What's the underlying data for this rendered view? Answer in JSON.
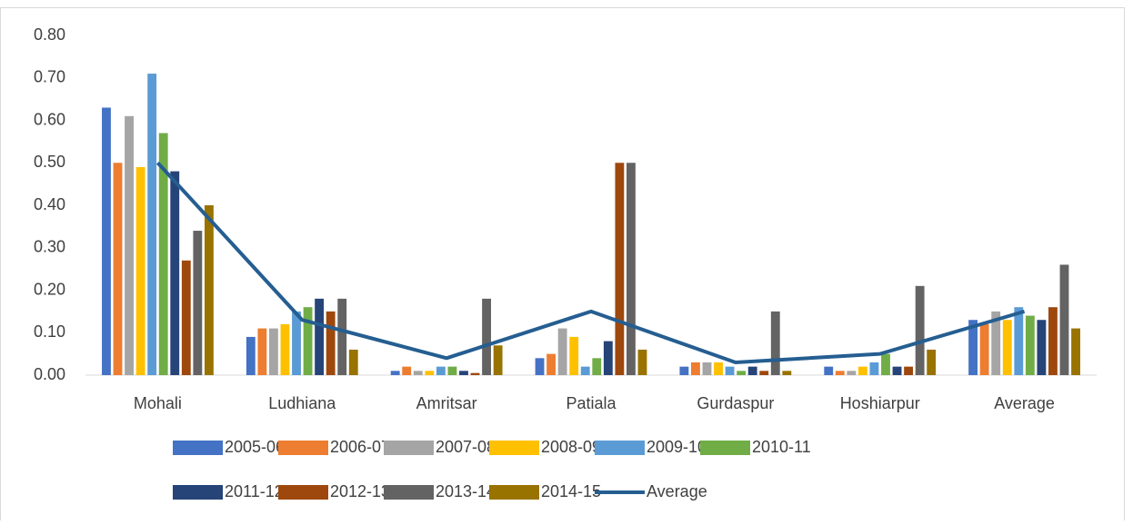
{
  "chart_data": {
    "type": "bar",
    "categories": [
      "Mohali",
      "Ludhiana",
      "Amritsar",
      "Patiala",
      "Gurdaspur",
      "Hoshiarpur",
      "Average"
    ],
    "series": [
      {
        "name": "2005-06",
        "color": "#4472c4",
        "values": [
          0.63,
          0.09,
          0.01,
          0.04,
          0.02,
          0.02,
          0.13
        ]
      },
      {
        "name": "2006-07",
        "color": "#ed7d31",
        "values": [
          0.5,
          0.11,
          0.02,
          0.05,
          0.03,
          0.01,
          0.12
        ]
      },
      {
        "name": "2007-08",
        "color": "#a5a5a5",
        "values": [
          0.61,
          0.11,
          0.01,
          0.11,
          0.03,
          0.01,
          0.15
        ]
      },
      {
        "name": "2008-09",
        "color": "#ffc000",
        "values": [
          0.49,
          0.12,
          0.01,
          0.09,
          0.03,
          0.02,
          0.13
        ]
      },
      {
        "name": "2009-10",
        "color": "#5b9bd5",
        "values": [
          0.71,
          0.15,
          0.02,
          0.02,
          0.02,
          0.03,
          0.16
        ]
      },
      {
        "name": "2010-11",
        "color": "#70ad47",
        "values": [
          0.57,
          0.16,
          0.02,
          0.04,
          0.01,
          0.05,
          0.14
        ]
      },
      {
        "name": "2011-12",
        "color": "#264478",
        "values": [
          0.48,
          0.18,
          0.01,
          0.08,
          0.02,
          0.02,
          0.13
        ]
      },
      {
        "name": "2012-13",
        "color": "#9e480e",
        "values": [
          0.27,
          0.15,
          0.005,
          0.5,
          0.01,
          0.02,
          0.16
        ]
      },
      {
        "name": "2013-14",
        "color": "#636363",
        "values": [
          0.34,
          0.18,
          0.18,
          0.5,
          0.15,
          0.21,
          0.26
        ]
      },
      {
        "name": "2014-15",
        "color": "#997300",
        "values": [
          0.4,
          0.06,
          0.07,
          0.06,
          0.01,
          0.06,
          0.11
        ]
      },
      {
        "name": "Average",
        "type": "line",
        "color": "#255e91",
        "values": [
          0.5,
          0.13,
          0.04,
          0.15,
          0.03,
          0.05,
          0.15
        ]
      }
    ],
    "ylim": [
      0,
      0.8
    ],
    "yticks": [
      {
        "value": 0,
        "label": "0.00"
      },
      {
        "value": 0.1,
        "label": "0.10"
      },
      {
        "value": 0.2,
        "label": "0.20"
      },
      {
        "value": 0.3,
        "label": "0.30"
      },
      {
        "value": 0.4,
        "label": "0.40"
      },
      {
        "value": 0.5,
        "label": "0.50"
      },
      {
        "value": 0.6,
        "label": "0.60"
      },
      {
        "value": 0.7,
        "label": "0.70"
      },
      {
        "value": 0.8,
        "label": "0.80"
      }
    ],
    "legend": "bottom"
  }
}
